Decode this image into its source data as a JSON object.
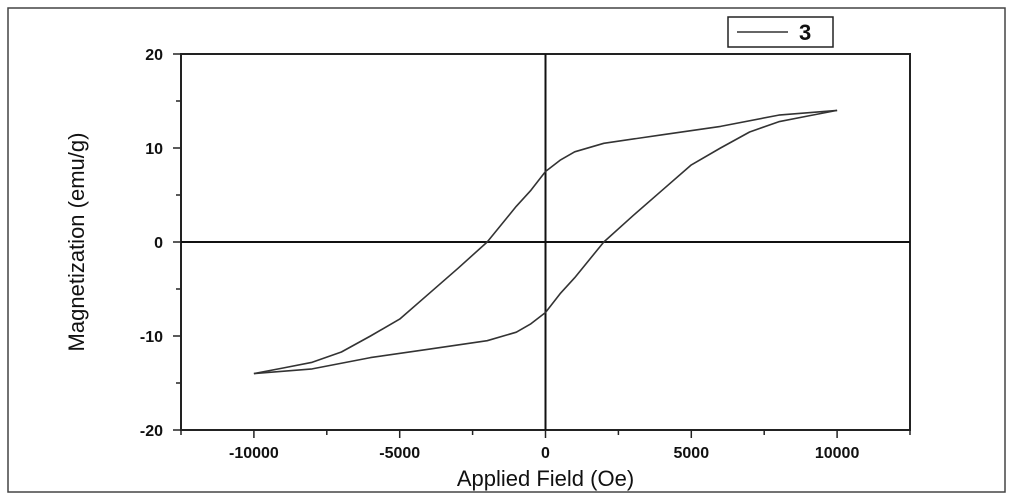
{
  "chart_data": {
    "type": "line",
    "title": "",
    "xlabel": "Applied Field (Oe)",
    "ylabel": "Magnetization (emu/g)",
    "xlim": [
      -12500,
      12500
    ],
    "ylim": [
      -20,
      20
    ],
    "x_ticks": [
      -10000,
      -5000,
      0,
      5000,
      10000
    ],
    "x_tick_labels": [
      "-10000",
      "-5000",
      "0",
      "5000",
      "10000"
    ],
    "y_ticks": [
      -20,
      -10,
      0,
      10,
      20
    ],
    "y_tick_labels": [
      "-20",
      "-10",
      "0",
      "10",
      "20"
    ],
    "grid": false,
    "zero_lines": true,
    "legend_position": "top-right",
    "line_color": "#333333",
    "series": [
      {
        "name": "3",
        "branches": [
          {
            "x": [
              10000,
              8000,
              6000,
              4000,
              2000,
              1000,
              500,
              0,
              -500,
              -1000,
              -2000,
              -3000,
              -4000,
              -5000,
              -6000,
              -7000,
              -8000,
              -9000,
              -10000
            ],
            "y": [
              14,
              13.5,
              12.3,
              11.4,
              10.5,
              9.6,
              8.7,
              7.5,
              5.5,
              3.8,
              0,
              -2.8,
              -5.5,
              -8.2,
              -10,
              -11.7,
              -12.8,
              -13.4,
              -14
            ]
          },
          {
            "x": [
              -10000,
              -8000,
              -6000,
              -4000,
              -2000,
              -1000,
              -500,
              0,
              500,
              1000,
              2000,
              3000,
              4000,
              5000,
              6000,
              7000,
              8000,
              9000,
              10000
            ],
            "y": [
              -14,
              -13.5,
              -12.3,
              -11.4,
              -10.5,
              -9.6,
              -8.7,
              -7.5,
              -5.5,
              -3.8,
              0,
              2.8,
              5.5,
              8.2,
              10,
              11.7,
              12.8,
              13.4,
              14
            ]
          }
        ]
      }
    ]
  }
}
